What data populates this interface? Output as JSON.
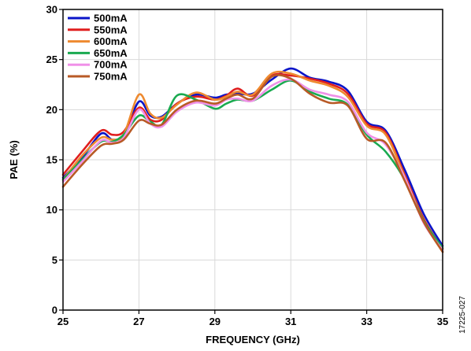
{
  "chart_data": {
    "type": "line",
    "title": "",
    "xlabel": "FREQUENCY (GHz)",
    "ylabel": "PAE (%)",
    "xlim": [
      25,
      35
    ],
    "ylim": [
      0,
      30
    ],
    "x_ticks": [
      25,
      27,
      29,
      31,
      33,
      35
    ],
    "y_ticks": [
      0,
      5,
      10,
      15,
      20,
      25,
      30
    ],
    "grid": true,
    "legend_position": "top-left",
    "figure_id": "17225-027",
    "x": [
      25.0,
      25.5,
      26.0,
      26.3,
      26.6,
      27.0,
      27.3,
      27.6,
      28.0,
      28.5,
      29.0,
      29.3,
      29.6,
      30.0,
      30.5,
      31.0,
      31.5,
      32.0,
      32.5,
      33.0,
      33.5,
      34.0,
      34.5,
      35.0
    ],
    "series": [
      {
        "name": "500mA",
        "color": "#0a14c8",
        "values": [
          13.2,
          15.2,
          17.6,
          17.0,
          17.5,
          20.8,
          19.4,
          19.3,
          20.6,
          21.5,
          21.2,
          21.5,
          21.6,
          21.6,
          23.0,
          24.1,
          23.2,
          22.8,
          21.9,
          18.8,
          17.9,
          14.0,
          9.6,
          6.4
        ]
      },
      {
        "name": "550mA",
        "color": "#e01e1e",
        "values": [
          13.5,
          15.8,
          17.9,
          17.5,
          17.8,
          20.2,
          19.0,
          19.0,
          20.6,
          21.3,
          21.0,
          21.4,
          22.1,
          21.4,
          23.4,
          23.4,
          23.1,
          22.6,
          21.6,
          18.6,
          17.7,
          13.5,
          9.1,
          6.1
        ]
      },
      {
        "name": "600mA",
        "color": "#ee8a30",
        "values": [
          13.0,
          15.4,
          17.2,
          17.0,
          17.5,
          21.5,
          19.6,
          19.2,
          20.5,
          21.7,
          21.0,
          21.3,
          21.8,
          21.5,
          23.6,
          23.6,
          22.9,
          22.4,
          21.3,
          18.4,
          17.5,
          13.3,
          8.9,
          5.8
        ]
      },
      {
        "name": "650mA",
        "color": "#1aaa50",
        "values": [
          13.0,
          15.0,
          16.8,
          16.8,
          17.5,
          19.4,
          18.8,
          18.5,
          21.4,
          21.0,
          20.1,
          20.6,
          21.0,
          20.9,
          22.0,
          22.9,
          21.8,
          21.1,
          20.5,
          17.5,
          15.8,
          13.0,
          8.9,
          6.2
        ]
      },
      {
        "name": "700mA",
        "color": "#f090e8",
        "values": [
          12.8,
          14.8,
          16.9,
          16.7,
          17.2,
          20.0,
          18.6,
          18.3,
          19.8,
          20.7,
          20.4,
          21.0,
          21.1,
          20.9,
          22.4,
          23.0,
          22.0,
          21.5,
          20.8,
          17.7,
          16.5,
          13.2,
          8.7,
          6.0
        ]
      },
      {
        "name": "750mA",
        "color": "#b85a26",
        "values": [
          12.3,
          14.5,
          16.4,
          16.6,
          17.0,
          18.9,
          18.6,
          18.5,
          20.0,
          20.9,
          20.6,
          21.1,
          21.5,
          21.1,
          23.3,
          23.1,
          21.6,
          20.7,
          20.4,
          17.1,
          16.7,
          12.9,
          8.8,
          5.8
        ]
      }
    ]
  }
}
